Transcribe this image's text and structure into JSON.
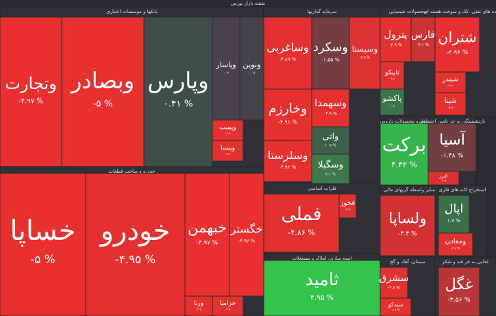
{
  "chart_data": {
    "type": "treemap",
    "title": "نقشه بازار بورس",
    "groups": [
      {
        "name": "بانکها و موسسات اعتباری",
        "tiles": [
          {
            "name": "وتجارت",
            "value": -4.97,
            "value_label": "-۴.۹۷ %"
          },
          {
            "name": "وبصادر",
            "value": -5,
            "value_label": "-۵ %"
          },
          {
            "name": "وپارس",
            "value": 0.41,
            "value_label": "۰.۴۱ %"
          },
          {
            "name": "وپاسار",
            "value": -0.2,
            "value_label": "-۰.۲"
          },
          {
            "name": "ونوین",
            "value": -0.16,
            "value_label": "-۰.۱۶"
          },
          {
            "name": "ویست",
            "value": -4.9,
            "value_label": "-۴.۹"
          },
          {
            "name": "ویسنا",
            "value": -4.8,
            "value_label": "-۴.۸"
          }
        ]
      },
      {
        "name": "خودرو و ساخت قطعات",
        "tiles": [
          {
            "name": "خساپا",
            "value": -5,
            "value_label": "-۵ %"
          },
          {
            "name": "خودرو",
            "value": -4.95,
            "value_label": "-۴.۹۵ %"
          },
          {
            "name": "خبهمن",
            "value": -4.97,
            "value_label": "-۴.۹۷ %"
          },
          {
            "name": "خگستر",
            "value": -4.97,
            "value_label": "-۴.۹۷ %"
          },
          {
            "name": "ورنا",
            "value": -4.9,
            "value_label": "-۴.۹"
          },
          {
            "name": "خزامیا",
            "value": -4.8,
            "value_label": "-۴.۸"
          }
        ]
      },
      {
        "name": "سرمایه گذاریها",
        "tiles": [
          {
            "name": "وساغربی",
            "value": -4.89,
            "value_label": "-۴.۸۹ %"
          },
          {
            "name": "وسکرد",
            "value": -1.55,
            "value_label": "-۱.۵۵ %"
          },
          {
            "name": "وسیستا",
            "value": -4.7,
            "value_label": "-۴.۷ %"
          },
          {
            "name": "وخارزم",
            "value": -4.91,
            "value_label": "-۴.۹۱ %"
          },
          {
            "name": "وسهمدا",
            "value": -4.9,
            "value_label": "-۴.۹ %"
          },
          {
            "name": "واتی",
            "value": 1.07,
            "value_label": "۱.۰۷ %"
          },
          {
            "name": "وسلرستا",
            "value": -4.92,
            "value_label": "-۴.۹۲ %"
          },
          {
            "name": "وسگیلا",
            "value": 2.1,
            "value_label": "۲.۱ %"
          }
        ]
      },
      {
        "name": "فلزات اساسی",
        "tiles": [
          {
            "name": "فملی",
            "value": -4.86,
            "value_label": "-۴.۸۶ %"
          },
          {
            "name": "فخوز",
            "value": -4.7,
            "value_label": "-۴.۷"
          }
        ]
      },
      {
        "name": "انبوه سازی، املاک و مستغلات",
        "tiles": [
          {
            "name": "ثامید",
            "value": 4.95,
            "value_label": "۴.۹۵ %"
          }
        ]
      },
      {
        "name": "محصولات شیمیایی",
        "tiles": [
          {
            "name": "پترول",
            "value": -4.9,
            "value_label": "-۴.۹ %"
          },
          {
            "name": "فارس",
            "value": -4.1,
            "value_label": "-۴.۱ %"
          },
          {
            "name": "تاپیکو",
            "value": -4.8,
            "value_label": "-۴.۸"
          },
          {
            "name": "پاکشو",
            "value": 1.9,
            "value_label": "۱.۹"
          }
        ]
      },
      {
        "name": "فرآورده های نفتی، کک و سوخت هسته ای",
        "tiles": [
          {
            "name": "شتران",
            "value": -4.96,
            "value_label": "-۴.۹۶ %"
          },
          {
            "name": "شبندر",
            "value": -4.8,
            "value_label": "-۴.۸"
          },
          {
            "name": "شپنا",
            "value": -4.9,
            "value_label": "-۴.۹"
          }
        ]
      },
      {
        "name": "مواد و محصولات دارویی",
        "tiles": [
          {
            "name": "برکت",
            "value": 4.42,
            "value_label": "۴.۴۲ %"
          }
        ]
      },
      {
        "name": "بازنشستگی به جز تامین اجتماعی",
        "tiles": [
          {
            "name": "آسیا",
            "value": -1.48,
            "value_label": "-۱.۴۸ %"
          },
          {
            "name": "البرز",
            "value": -4.5,
            "value_label": "-۴.۵"
          }
        ]
      },
      {
        "name": "سایر واسطه گریهای مالی",
        "tiles": [
          {
            "name": "ولساپا",
            "value": -4.4,
            "value_label": "-۴.۴ %"
          }
        ]
      },
      {
        "name": "استخراج کانه های فلزی",
        "tiles": [
          {
            "name": "اپال",
            "value": 1.7,
            "value_label": "۱.۷ %"
          },
          {
            "name": "ومعادن",
            "value": -4.8,
            "value_label": "-۴.۸ %"
          }
        ]
      },
      {
        "name": "سیمان، آهک و گچ",
        "tiles": [
          {
            "name": "سشرق",
            "value": -4.8,
            "value_label": "-۴.۸ %"
          },
          {
            "name": "سیدکو",
            "value": -4.9,
            "value_label": "-۴.۹ %"
          }
        ]
      },
      {
        "name": "غذایی به جز قند و شکر",
        "tiles": [
          {
            "name": "غگل",
            "value": -3.56,
            "value_label": "-۳.۵۶ %"
          }
        ]
      }
    ]
  }
}
